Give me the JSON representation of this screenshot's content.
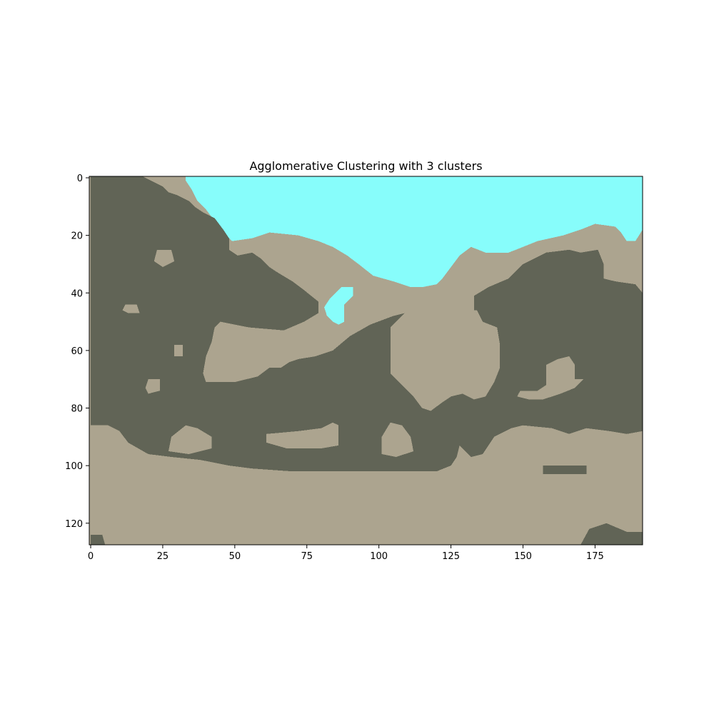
{
  "chart_data": {
    "type": "heatmap",
    "title": "Agglomerative Clustering with 3 clusters",
    "xlabel": "",
    "ylabel": "",
    "image_width": 192,
    "image_height": 128,
    "xlim": [
      -0.5,
      191.5
    ],
    "ylim": [
      127.5,
      -0.5
    ],
    "y_axis_inverted": true,
    "grid": false,
    "x_ticks": [
      0,
      25,
      50,
      75,
      100,
      125,
      150,
      175
    ],
    "y_ticks": [
      0,
      20,
      40,
      60,
      80,
      100,
      120
    ],
    "cluster_colors": {
      "water": "#87fdfb",
      "light": "#aca48f",
      "dark": "#616456"
    },
    "regions": {
      "water": [
        {
          "name": "top-water",
          "outline": [
            [
              33,
              -0.5
            ],
            [
              191.5,
              -0.5
            ],
            [
              191.5,
              18
            ],
            [
              189,
              22
            ],
            [
              186,
              22
            ],
            [
              184,
              19
            ],
            [
              182,
              17
            ],
            [
              175,
              16
            ],
            [
              170,
              18
            ],
            [
              164,
              20
            ],
            [
              155,
              22
            ],
            [
              150,
              24
            ],
            [
              145,
              26
            ],
            [
              140,
              26
            ],
            [
              137,
              26
            ],
            [
              132,
              24
            ],
            [
              128,
              27
            ],
            [
              125,
              31
            ],
            [
              122,
              35
            ],
            [
              120,
              37
            ],
            [
              115,
              38
            ],
            [
              111,
              38
            ],
            [
              105,
              36
            ],
            [
              98,
              34
            ],
            [
              93,
              30
            ],
            [
              89,
              27
            ],
            [
              84,
              24
            ],
            [
              79,
              22
            ],
            [
              72,
              20
            ],
            [
              62,
              19
            ],
            [
              56,
              21
            ],
            [
              49,
              22
            ],
            [
              46,
              19
            ],
            [
              43,
              15
            ],
            [
              40,
              11
            ],
            [
              37,
              8
            ],
            [
              35,
              4
            ],
            [
              33,
              1
            ]
          ]
        },
        {
          "name": "hole-water",
          "outline": [
            [
              87,
              38
            ],
            [
              91,
              38
            ],
            [
              91,
              41
            ],
            [
              88,
              44
            ],
            [
              88,
              48
            ],
            [
              88,
              50
            ],
            [
              86,
              51
            ],
            [
              84,
              50
            ],
            [
              82,
              48
            ],
            [
              81,
              45
            ],
            [
              83,
              42
            ],
            [
              85,
              40
            ]
          ]
        }
      ],
      "dark": [
        {
          "name": "top-left-blob",
          "outline": [
            [
              0,
              -0.5
            ],
            [
              18,
              -0.5
            ],
            [
              23,
              2
            ],
            [
              25,
              3
            ],
            [
              27,
              5
            ],
            [
              30,
              6
            ],
            [
              34,
              8
            ],
            [
              36,
              10
            ],
            [
              39,
              12
            ],
            [
              43,
              14
            ],
            [
              46,
              18
            ],
            [
              48,
              21
            ],
            [
              48,
              25
            ],
            [
              51,
              27
            ],
            [
              56,
              26
            ],
            [
              59,
              28
            ],
            [
              62,
              31
            ],
            [
              65,
              33
            ],
            [
              70,
              36
            ],
            [
              74,
              39
            ],
            [
              79,
              43
            ],
            [
              79,
              47
            ],
            [
              74,
              50
            ],
            [
              67,
              53
            ],
            [
              55,
              52
            ],
            [
              45,
              50
            ],
            [
              43,
              52
            ],
            [
              42,
              57
            ],
            [
              40,
              62
            ],
            [
              39,
              68
            ],
            [
              40,
              71
            ],
            [
              50,
              71
            ],
            [
              58,
              69
            ],
            [
              62,
              66
            ],
            [
              66,
              66
            ],
            [
              69,
              64
            ],
            [
              72,
              63
            ],
            [
              78,
              62
            ],
            [
              84,
              60
            ],
            [
              90,
              55
            ],
            [
              97,
              51
            ],
            [
              105,
              48
            ],
            [
              109,
              47
            ],
            [
              104,
              52
            ],
            [
              104,
              60
            ],
            [
              104,
              68
            ],
            [
              108,
              72
            ],
            [
              112,
              76
            ],
            [
              115,
              80
            ],
            [
              118,
              81
            ],
            [
              122,
              78
            ],
            [
              125,
              76
            ],
            [
              129,
              75
            ],
            [
              133,
              77
            ],
            [
              137,
              76
            ],
            [
              140,
              71
            ],
            [
              142,
              66
            ],
            [
              142,
              58
            ],
            [
              141,
              52
            ],
            [
              136,
              50
            ],
            [
              133,
              47
            ],
            [
              133,
              41
            ],
            [
              138,
              38
            ],
            [
              145,
              35
            ],
            [
              150,
              30
            ],
            [
              158,
              26
            ],
            [
              166,
              25
            ],
            [
              170,
              26
            ],
            [
              176,
              25
            ],
            [
              178,
              30
            ],
            [
              178,
              35
            ],
            [
              182,
              36
            ],
            [
              189,
              37
            ],
            [
              191.5,
              40
            ],
            [
              191.5,
              127.5
            ],
            [
              170,
              127.5
            ],
            [
              173,
              122
            ],
            [
              179,
              120
            ],
            [
              186,
              123
            ],
            [
              191.5,
              123
            ],
            [
              191.5,
              88
            ],
            [
              186,
              89
            ],
            [
              180,
              88
            ],
            [
              172,
              87
            ],
            [
              166,
              89
            ],
            [
              160,
              87
            ],
            [
              150,
              86
            ],
            [
              146,
              87
            ],
            [
              140,
              90
            ],
            [
              136,
              96
            ],
            [
              132,
              97
            ],
            [
              128,
              93
            ],
            [
              127,
              97
            ],
            [
              125,
              100
            ],
            [
              120,
              102
            ],
            [
              113,
              102
            ],
            [
              105,
              102
            ],
            [
              94,
              102
            ],
            [
              82,
              102
            ],
            [
              70,
              102
            ],
            [
              56,
              101
            ],
            [
              48,
              100
            ],
            [
              38,
              98
            ],
            [
              28,
              97
            ],
            [
              20,
              96
            ],
            [
              13,
              92
            ],
            [
              10,
              88
            ],
            [
              6,
              86
            ],
            [
              0,
              86
            ]
          ]
        },
        {
          "name": "bottom-left-corner",
          "outline": [
            [
              0,
              127.5
            ],
            [
              0,
              124
            ],
            [
              4,
              124
            ],
            [
              5,
              127.5
            ]
          ]
        },
        {
          "name": "mid-right-patch",
          "outline": [
            [
              157,
              100
            ],
            [
              172,
              100
            ],
            [
              172,
              103
            ],
            [
              157,
              103
            ]
          ]
        }
      ],
      "light": [
        {
          "name": "small-patch-a",
          "outline": [
            [
              12,
              44
            ],
            [
              16,
              44
            ],
            [
              17,
              47
            ],
            [
              13,
              47
            ],
            [
              11,
              46
            ]
          ]
        },
        {
          "name": "small-patch-b",
          "outline": [
            [
              23,
              25
            ],
            [
              28,
              25
            ],
            [
              29,
              29
            ],
            [
              25,
              31
            ],
            [
              22,
              29
            ]
          ]
        },
        {
          "name": "small-patch-c",
          "outline": [
            [
              29,
              58
            ],
            [
              32,
              58
            ],
            [
              32,
              62
            ],
            [
              29,
              62
            ]
          ]
        },
        {
          "name": "small-patch-d",
          "outline": [
            [
              20,
              70
            ],
            [
              24,
              70
            ],
            [
              24,
              74
            ],
            [
              20,
              75
            ],
            [
              19,
              73
            ]
          ]
        },
        {
          "name": "bottom-blob-a",
          "outline": [
            [
              28,
              90
            ],
            [
              33,
              86
            ],
            [
              37,
              87
            ],
            [
              42,
              90
            ],
            [
              42,
              94
            ],
            [
              34,
              96
            ],
            [
              27,
              95
            ]
          ]
        },
        {
          "name": "bottom-blob-b",
          "outline": [
            [
              61,
              89
            ],
            [
              72,
              88
            ],
            [
              80,
              87
            ],
            [
              84,
              85
            ],
            [
              86,
              86
            ],
            [
              86,
              93
            ],
            [
              80,
              94
            ],
            [
              68,
              94
            ],
            [
              61,
              92
            ]
          ]
        },
        {
          "name": "bottom-blob-c",
          "outline": [
            [
              101,
              90
            ],
            [
              104,
              85
            ],
            [
              108,
              86
            ],
            [
              111,
              90
            ],
            [
              112,
              95
            ],
            [
              106,
              97
            ],
            [
              101,
              96
            ]
          ]
        },
        {
          "name": "right-dark-hole",
          "outline": [
            [
              131,
              46
            ],
            [
              134,
              46
            ],
            [
              136,
              50
            ],
            [
              136,
              55
            ],
            [
              133,
              55
            ],
            [
              130,
              51
            ]
          ]
        },
        {
          "name": "right-blob-top",
          "outline": [
            [
              158,
              65
            ],
            [
              162,
              63
            ],
            [
              166,
              62
            ],
            [
              168,
              65
            ],
            [
              168,
              70
            ],
            [
              171,
              70
            ],
            [
              168,
              73
            ],
            [
              163,
              75
            ],
            [
              157,
              77
            ],
            [
              152,
              77
            ],
            [
              148,
              76
            ],
            [
              149,
              74
            ],
            [
              155,
              74
            ],
            [
              158,
              72
            ]
          ]
        }
      ]
    }
  }
}
